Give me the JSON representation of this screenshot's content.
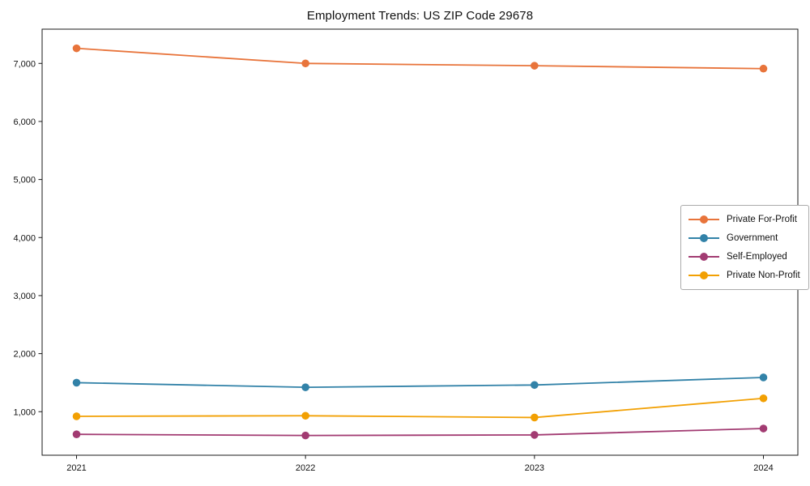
{
  "figure": {
    "background": "#ffffff",
    "frame_color": "#1a1a1a"
  },
  "chart_data": {
    "type": "line",
    "title": "Employment Trends: US ZIP Code 29678",
    "categories": [
      "2021",
      "2022",
      "2023",
      "2024"
    ],
    "series": [
      {
        "name": "Private For-Profit",
        "color": "#E8743B",
        "values": [
          7260,
          7000,
          6960,
          6910
        ]
      },
      {
        "name": "Government",
        "color": "#3282A8",
        "values": [
          1500,
          1420,
          1460,
          1590
        ]
      },
      {
        "name": "Self-Employed",
        "color": "#A23B72",
        "values": [
          610,
          590,
          600,
          710
        ]
      },
      {
        "name": "Private Non-Profit",
        "color": "#F2A003",
        "values": [
          920,
          930,
          900,
          1230
        ]
      }
    ],
    "xlabel": "",
    "ylabel": "",
    "ylim": [
      250,
      7590
    ],
    "yticks": [
      1000,
      2000,
      3000,
      4000,
      5000,
      6000,
      7000
    ],
    "grid": false,
    "legend_position": "right-middle",
    "marker": "circle"
  }
}
